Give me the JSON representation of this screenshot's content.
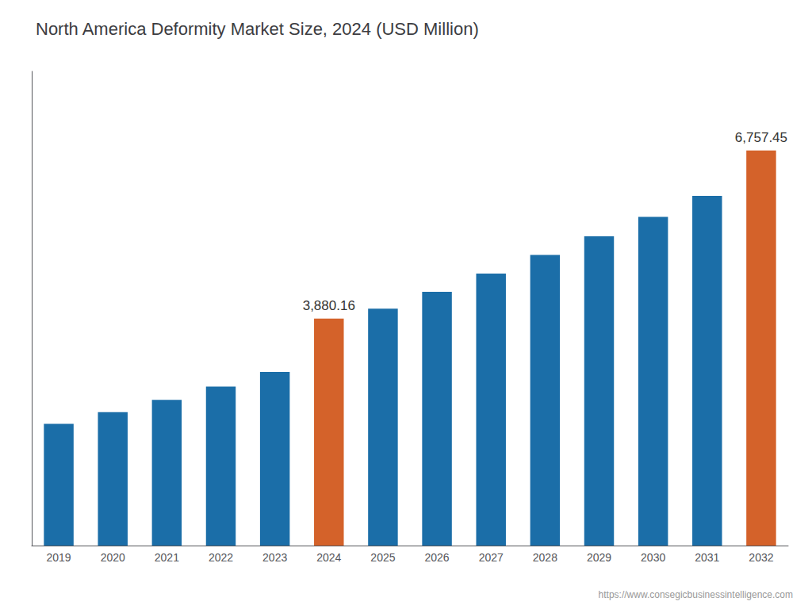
{
  "chart_data": {
    "type": "bar",
    "title": "North America Deformity Market Size, 2024 (USD Million)",
    "categories": [
      "2019",
      "2020",
      "2021",
      "2022",
      "2023",
      "2024",
      "2025",
      "2026",
      "2027",
      "2028",
      "2029",
      "2030",
      "2031",
      "2032"
    ],
    "values": [
      2080,
      2280,
      2490,
      2720,
      2970,
      3880.16,
      4050,
      4340,
      4650,
      4970,
      5290,
      5620,
      5980,
      6757.45
    ],
    "value_labels": [
      null,
      null,
      null,
      null,
      null,
      "3,880.16",
      null,
      null,
      null,
      null,
      null,
      null,
      null,
      "6,757.45"
    ],
    "data_labels": true,
    "colors": [
      "#1b6ea8",
      "#1b6ea8",
      "#1b6ea8",
      "#1b6ea8",
      "#1b6ea8",
      "#d4622a",
      "#1b6ea8",
      "#1b6ea8",
      "#1b6ea8",
      "#1b6ea8",
      "#1b6ea8",
      "#1b6ea8",
      "#1b6ea8",
      "#d4622a"
    ],
    "ylim": [
      0,
      8108.94
    ],
    "yticks": [],
    "tick_labels": "x",
    "grid": false,
    "annotations": [
      "https://www.consegicbusinessintelligence.com"
    ]
  }
}
